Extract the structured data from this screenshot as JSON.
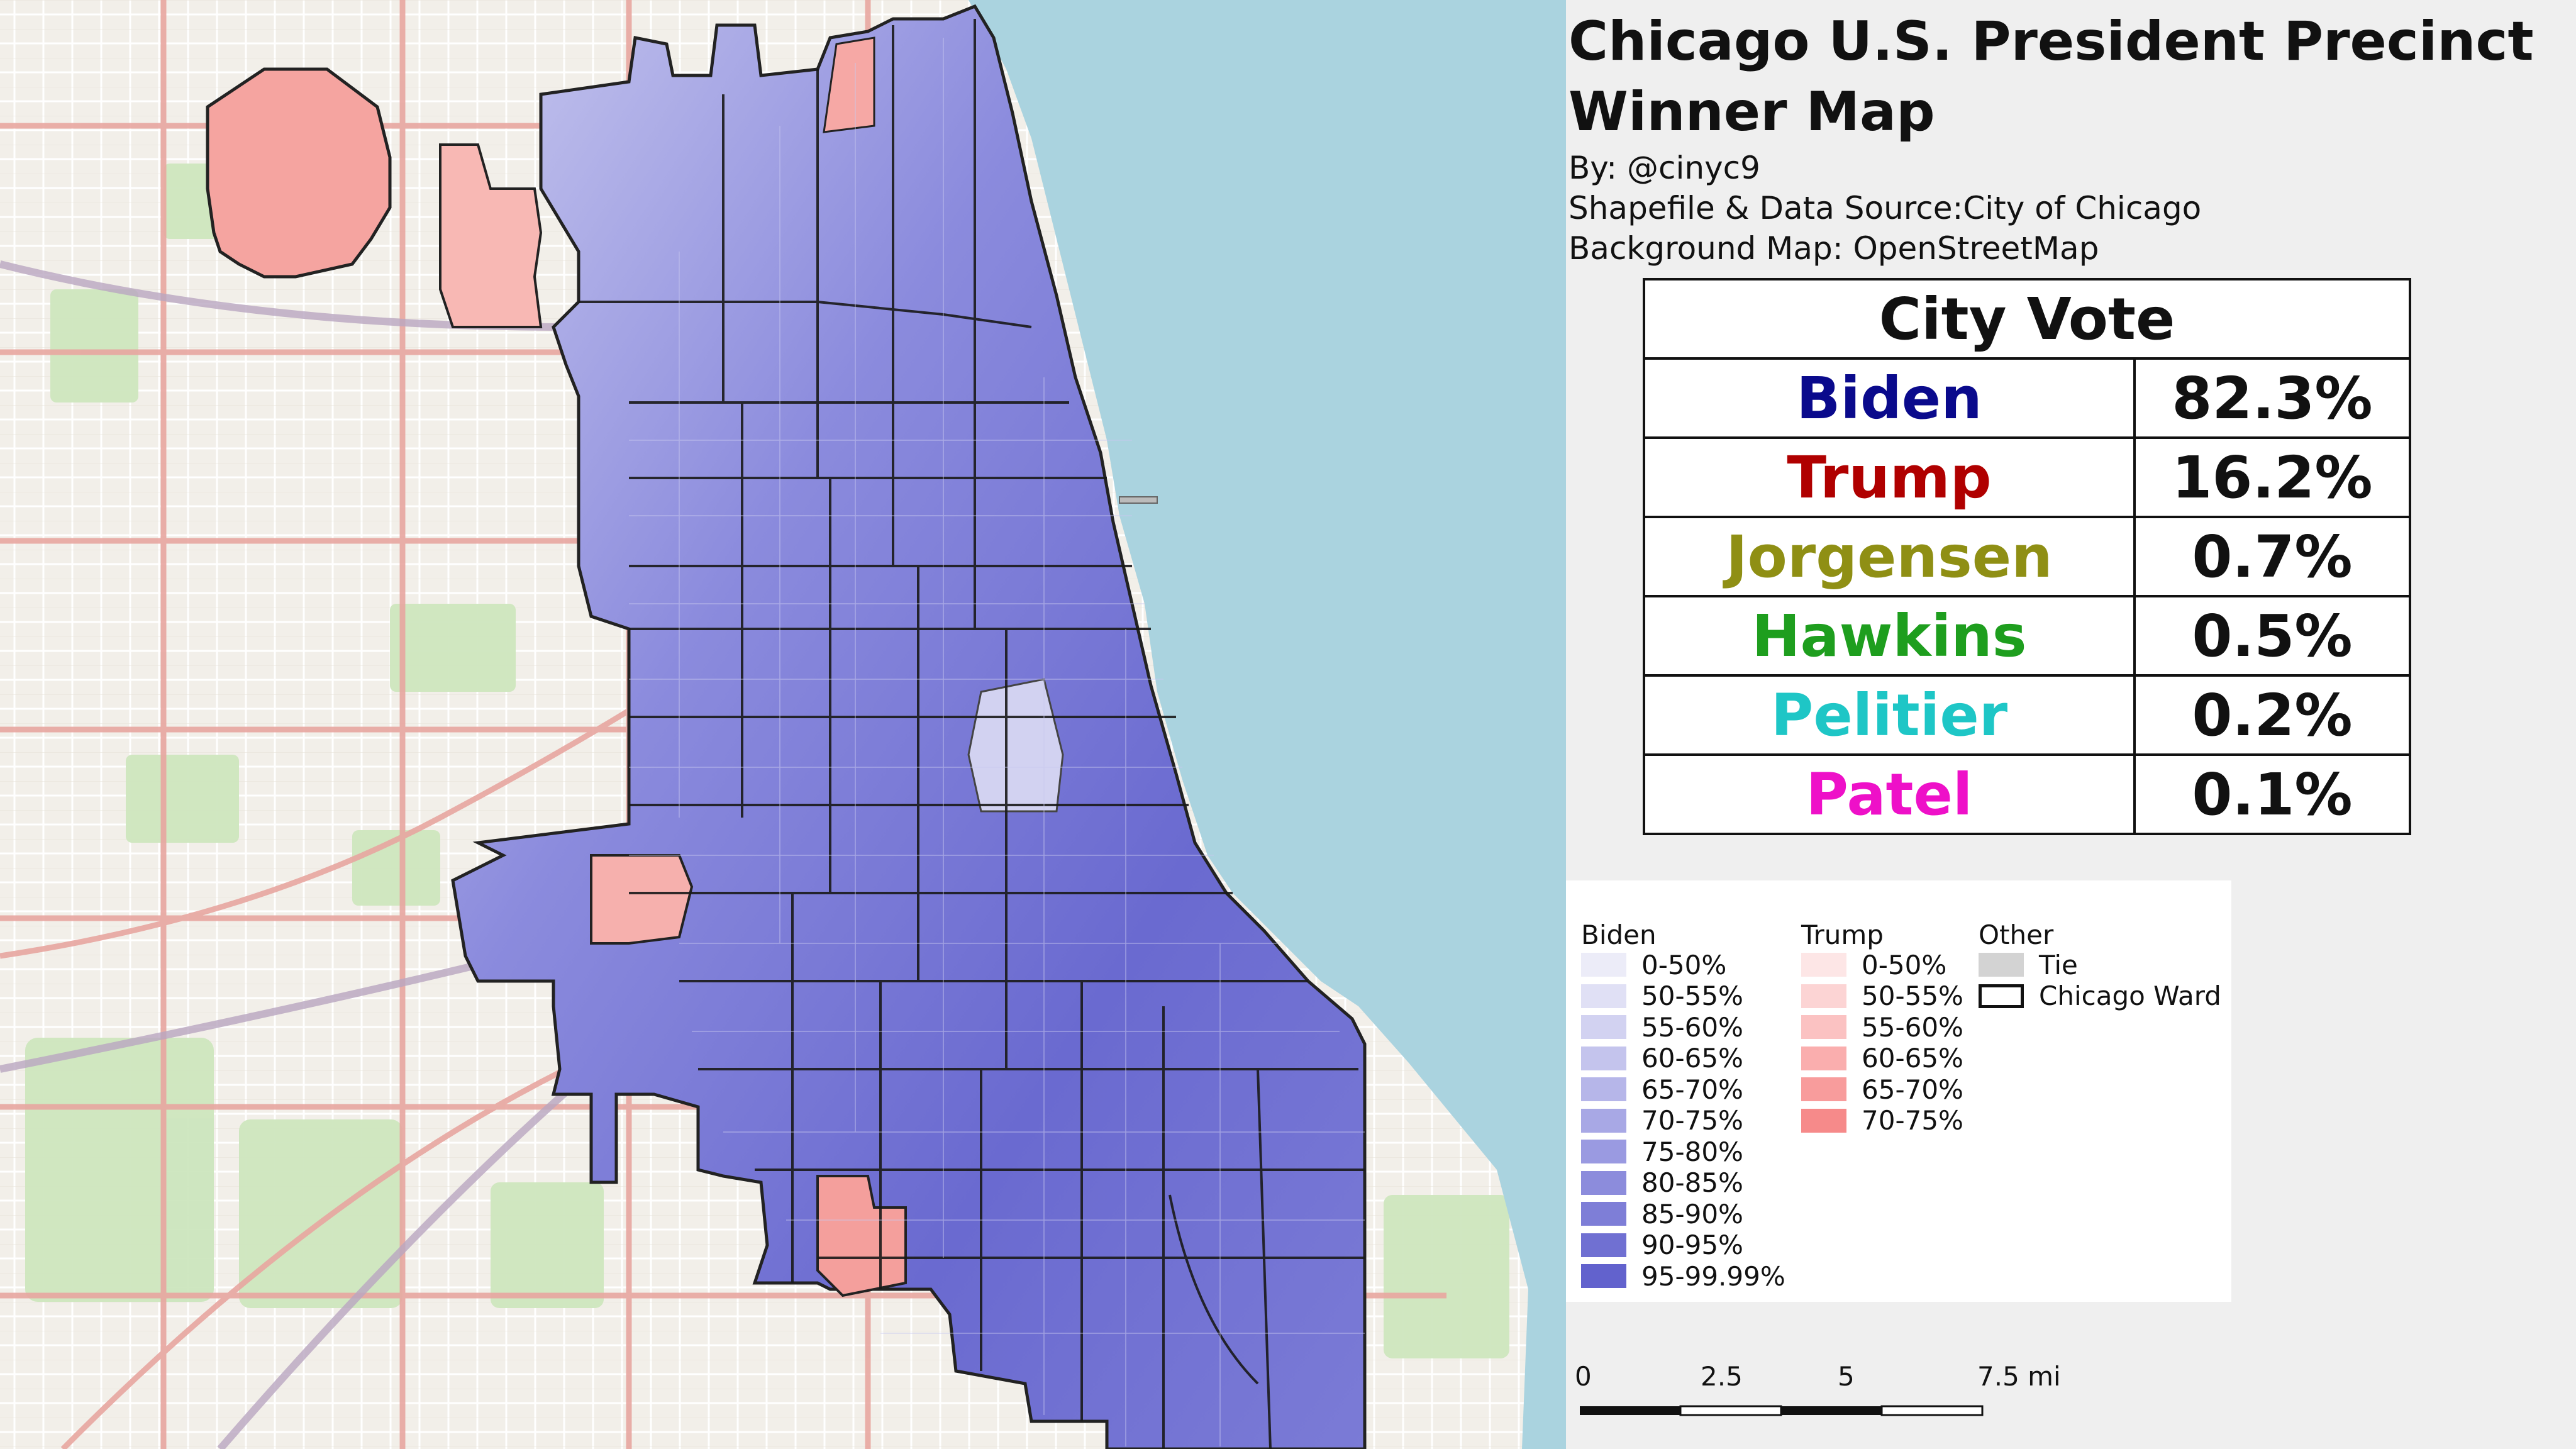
{
  "title_line1": "Chicago U.S. President Precinct",
  "title_line2": "Winner Map",
  "credits": {
    "by": "By: @cinyc9",
    "source": "Shapefile & Data Source:City of Chicago",
    "background": "Background Map: OpenStreetMap"
  },
  "vote_table": {
    "header": "City Vote",
    "rows": [
      {
        "candidate": "Biden",
        "pct": "82.3%",
        "color": "#0a0a8c"
      },
      {
        "candidate": "Trump",
        "pct": "16.2%",
        "color": "#b00000"
      },
      {
        "candidate": "Jorgensen",
        "pct": "0.7%",
        "color": "#8f8f14"
      },
      {
        "candidate": "Hawkins",
        "pct": "0.5%",
        "color": "#1e9e1e"
      },
      {
        "candidate": "Pelitier",
        "pct": "0.2%",
        "color": "#1ec6c6"
      },
      {
        "candidate": "Patel",
        "pct": "0.1%",
        "color": "#ee10c8"
      }
    ]
  },
  "legend": {
    "biden_heading": "Biden",
    "trump_heading": "Trump",
    "other_heading": "Other",
    "biden": [
      {
        "label": "0-50%",
        "color": "#ececf8"
      },
      {
        "label": "50-55%",
        "color": "#e0e0f5"
      },
      {
        "label": "55-60%",
        "color": "#d2d2f1"
      },
      {
        "label": "60-65%",
        "color": "#c4c4ed"
      },
      {
        "label": "65-70%",
        "color": "#b6b6e9"
      },
      {
        "label": "70-75%",
        "color": "#a8a8e5"
      },
      {
        "label": "75-80%",
        "color": "#9a9ae1"
      },
      {
        "label": "80-85%",
        "color": "#8c8cdc"
      },
      {
        "label": "85-90%",
        "color": "#7e7ed7"
      },
      {
        "label": "90-95%",
        "color": "#7070d2"
      },
      {
        "label": "95-99.99%",
        "color": "#6262cd"
      }
    ],
    "trump": [
      {
        "label": "0-50%",
        "color": "#fde6e6"
      },
      {
        "label": "50-55%",
        "color": "#fcd4d4"
      },
      {
        "label": "55-60%",
        "color": "#fbc2c2"
      },
      {
        "label": "60-65%",
        "color": "#faaeae"
      },
      {
        "label": "65-70%",
        "color": "#f89c9c"
      },
      {
        "label": "70-75%",
        "color": "#f68a8a"
      }
    ],
    "other": [
      {
        "label": "Tie",
        "color": "#d3d3d3",
        "kind": "fill"
      },
      {
        "label": "Chicago Ward",
        "color": "#111111",
        "kind": "outline"
      }
    ]
  },
  "scale_bar": {
    "labels": [
      "0",
      "2.5",
      "5",
      "7.5 mi"
    ]
  },
  "map_colors": {
    "lake": "#aad3df",
    "land": "#f2efe9",
    "park": "#cde6be",
    "road_major": "#e8a6a0",
    "road_minor": "#ffffff",
    "ward_border": "#111111"
  }
}
